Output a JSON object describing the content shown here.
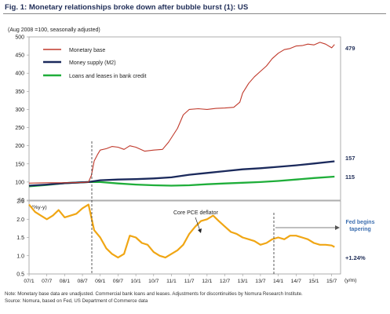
{
  "figure": {
    "title": "Fig. 1: Monetary relationships broke down after bubble burst (1): US",
    "note": "Note: Monetary base data are unadjusted. Commercial bank loans and leases. Adjustments for discontinuities by Nomura Research Institute.",
    "source": "Source: Nomura, based on Fed, US Department of Commerce data"
  },
  "colors": {
    "monetary_base": "#c0392b",
    "money_supply": "#1b2a5c",
    "loans_leases": "#1fae3a",
    "pce": "#f0a614",
    "annotation_blue": "#3d6fb0"
  },
  "chart_data": [
    {
      "type": "line",
      "subtitle": "(Aug 2008 =100, seasonally adjusted)",
      "ylim": [
        50,
        500
      ],
      "yticks": [
        50,
        100,
        150,
        200,
        250,
        300,
        350,
        400,
        450,
        500
      ],
      "grid": false,
      "legend_position": "top-left",
      "series": [
        {
          "name": "Monetary base",
          "end_label": "479",
          "x": [
            2007.0,
            2007.5,
            2008.0,
            2008.5,
            2008.67,
            2008.75,
            2008.83,
            2008.92,
            2009.0,
            2009.17,
            2009.33,
            2009.5,
            2009.67,
            2009.83,
            2010.0,
            2010.25,
            2010.5,
            2010.75,
            2010.92,
            2011.17,
            2011.33,
            2011.5,
            2011.75,
            2012.0,
            2012.25,
            2012.5,
            2012.75,
            2012.92,
            2013.0,
            2013.17,
            2013.33,
            2013.5,
            2013.67,
            2013.83,
            2014.0,
            2014.17,
            2014.33,
            2014.5,
            2014.67,
            2014.83,
            2015.0,
            2015.17,
            2015.33,
            2015.5,
            2015.58
          ],
          "values": [
            97,
            98,
            98,
            99,
            100,
            118,
            158,
            175,
            188,
            192,
            198,
            196,
            190,
            200,
            196,
            185,
            188,
            190,
            210,
            248,
            285,
            300,
            302,
            300,
            303,
            304,
            306,
            320,
            345,
            372,
            390,
            405,
            420,
            440,
            455,
            465,
            468,
            475,
            476,
            480,
            478,
            485,
            480,
            470,
            479
          ]
        },
        {
          "name": "Money supply (M2)",
          "end_label": "157",
          "x": [
            2007.0,
            2007.5,
            2008.0,
            2008.67,
            2009.0,
            2009.5,
            2010.0,
            2010.5,
            2011.0,
            2011.5,
            2012.0,
            2012.5,
            2013.0,
            2013.5,
            2014.0,
            2014.5,
            2015.0,
            2015.58
          ],
          "values": [
            90,
            93,
            97,
            100,
            105,
            107,
            108,
            110,
            113,
            120,
            125,
            130,
            135,
            138,
            142,
            146,
            151,
            157
          ]
        },
        {
          "name": "Loans and leases in bank credit",
          "end_label": "115",
          "x": [
            2007.0,
            2007.5,
            2008.0,
            2008.67,
            2009.0,
            2009.5,
            2010.0,
            2010.5,
            2011.0,
            2011.5,
            2012.0,
            2012.5,
            2013.0,
            2013.5,
            2014.0,
            2014.5,
            2015.0,
            2015.58
          ],
          "values": [
            88,
            92,
            97,
            100,
            100,
            96,
            93,
            91,
            90,
            91,
            94,
            96,
            98,
            100,
            103,
            107,
            111,
            115
          ]
        }
      ]
    },
    {
      "type": "line",
      "ylabel": "(%y-y)",
      "ylim": [
        0.5,
        2.5
      ],
      "yticks": [
        0.5,
        1.0,
        1.5,
        2.0,
        2.5
      ],
      "x_categories": [
        "07/1",
        "07/7",
        "08/1",
        "08/7",
        "09/1",
        "09/7",
        "10/1",
        "10/7",
        "11/1",
        "11/7",
        "12/1",
        "12/7",
        "13/1",
        "13/7",
        "14/1",
        "14/7",
        "15/1",
        "15/7"
      ],
      "x_unit": "(y/m)",
      "annotations": [
        "Core PCE deflator",
        "Fed begins tapering"
      ],
      "series": [
        {
          "name": "Core PCE deflator",
          "end_label": "+1.24%",
          "x": [
            2007.0,
            2007.17,
            2007.33,
            2007.5,
            2007.67,
            2007.83,
            2008.0,
            2008.17,
            2008.33,
            2008.5,
            2008.67,
            2008.83,
            2009.0,
            2009.17,
            2009.33,
            2009.5,
            2009.67,
            2009.83,
            2010.0,
            2010.17,
            2010.33,
            2010.5,
            2010.67,
            2010.83,
            2011.0,
            2011.17,
            2011.33,
            2011.5,
            2011.67,
            2011.83,
            2012.0,
            2012.17,
            2012.33,
            2012.5,
            2012.67,
            2012.83,
            2013.0,
            2013.17,
            2013.33,
            2013.5,
            2013.67,
            2013.83,
            2014.0,
            2014.17,
            2014.33,
            2014.5,
            2014.67,
            2014.83,
            2015.0,
            2015.17,
            2015.33,
            2015.5,
            2015.58
          ],
          "values": [
            2.4,
            2.2,
            2.1,
            2.0,
            2.1,
            2.25,
            2.05,
            2.1,
            2.15,
            2.3,
            2.4,
            1.7,
            1.5,
            1.2,
            1.05,
            0.95,
            1.05,
            1.55,
            1.5,
            1.35,
            1.3,
            1.1,
            1.0,
            0.95,
            1.05,
            1.15,
            1.3,
            1.6,
            1.8,
            1.95,
            2.0,
            2.1,
            1.95,
            1.8,
            1.65,
            1.6,
            1.5,
            1.45,
            1.4,
            1.3,
            1.35,
            1.45,
            1.5,
            1.45,
            1.55,
            1.55,
            1.5,
            1.45,
            1.35,
            1.3,
            1.3,
            1.28,
            1.24
          ]
        }
      ]
    }
  ]
}
